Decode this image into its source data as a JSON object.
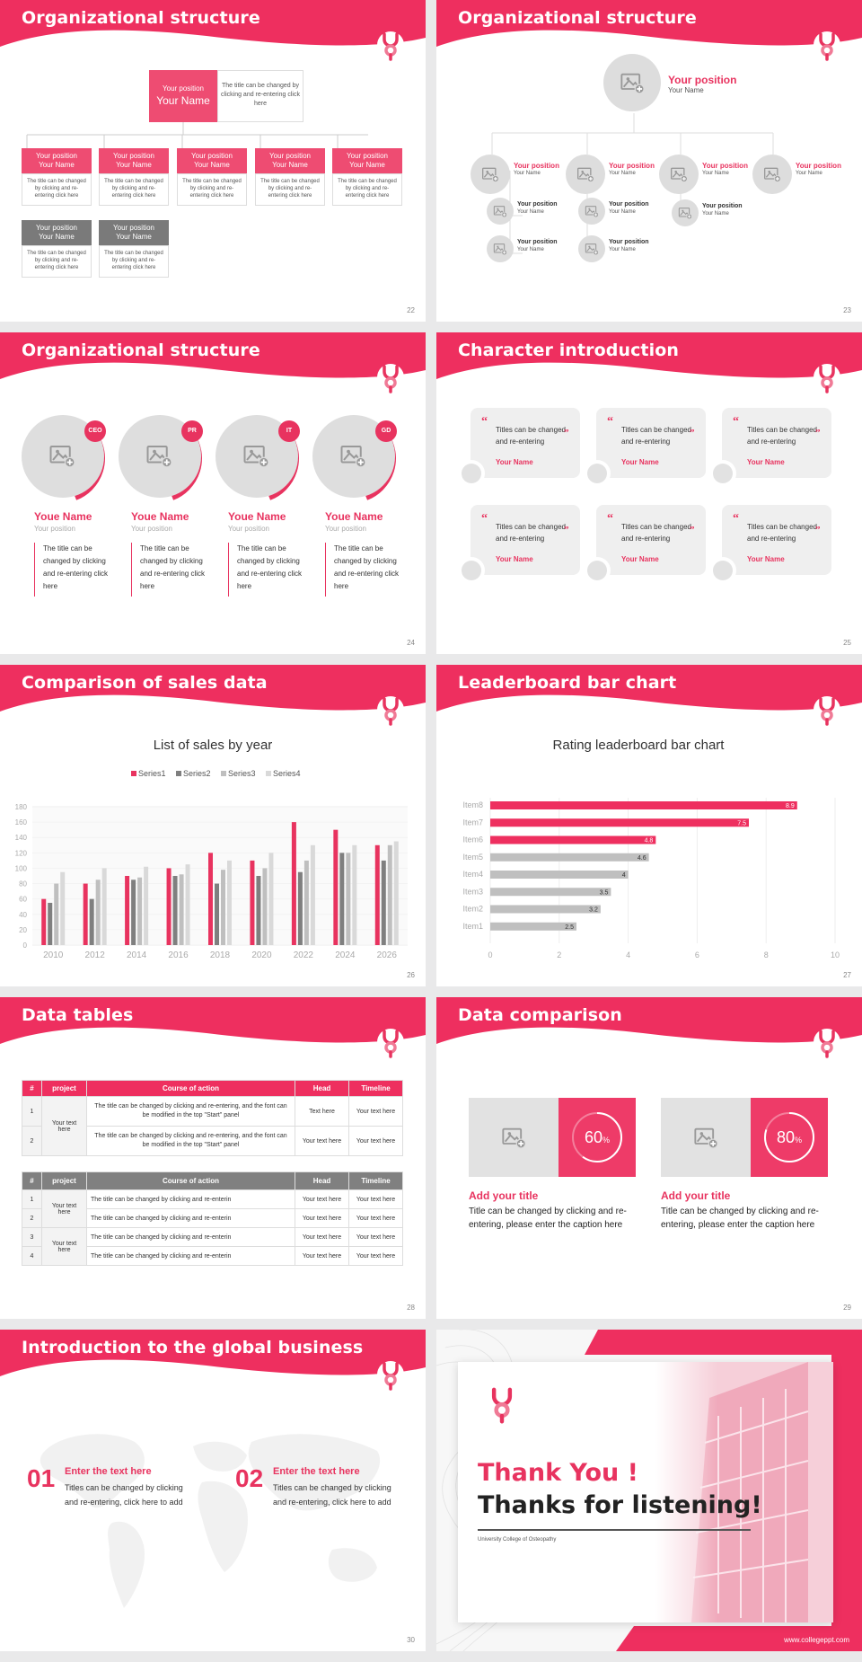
{
  "slides": [
    {
      "title": "Organizational structure",
      "num": "22",
      "top": {
        "pos": "Your position",
        "name": "Your Name",
        "desc": "The title can be changed by clicking and re-entering click here"
      },
      "box_pos": "Your position",
      "box_name": "Your Name",
      "box_desc": "The title can be changed by clicking and re-entering click here"
    },
    {
      "title": "Organizational structure",
      "num": "23",
      "pos": "Your position",
      "name": "Your Name"
    },
    {
      "title": "Organizational structure",
      "num": "24",
      "people": [
        {
          "badge": "CEO",
          "name": "Youe Name",
          "pos": "Your position",
          "desc": "The title can be changed by clicking and re-entering click here"
        },
        {
          "badge": "PR",
          "name": "Youe Name",
          "pos": "Your position",
          "desc": "The title can be changed by clicking and re-entering click here"
        },
        {
          "badge": "IT",
          "name": "Youe Name",
          "pos": "Your position",
          "desc": "The title can be changed by clicking and re-entering click here"
        },
        {
          "badge": "GD",
          "name": "Youe Name",
          "pos": "Your position",
          "desc": "The title can be changed by clicking and re-entering click here"
        }
      ]
    },
    {
      "title": "Character introduction",
      "num": "25",
      "quote_text": "Titles can be changed and re-entering",
      "quote_name": "Your Name",
      "open": "“",
      "close": "”"
    },
    {
      "title": "Comparison of sales data",
      "num": "26"
    },
    {
      "title": "Leaderboard bar chart",
      "num": "27"
    },
    {
      "title": "Data tables",
      "num": "28",
      "t1": {
        "headers": [
          "#",
          "project",
          "Course of action",
          "Head",
          "Timeline"
        ],
        "rows": [
          {
            "n": "1",
            "action": "The title can be changed by clicking and re-entering, and the font can be modified in the top \"Start\" panel",
            "head": "Text here",
            "time": "Your text here"
          },
          {
            "n": "2",
            "action": "The title can be changed by clicking and re-entering, and the font can be modified in the top \"Start\" panel",
            "head": "Your text here",
            "time": "Your text here"
          }
        ],
        "project": "Your text here"
      },
      "t2": {
        "headers": [
          "#",
          "project",
          "Course of action",
          "Head",
          "Timeline"
        ],
        "rows": [
          {
            "n": "1",
            "action": "The title can be changed by clicking and re-enterin",
            "head": "Your text here",
            "time": "Your text here"
          },
          {
            "n": "2",
            "action": "The title can be changed by clicking and re-enterin",
            "head": "Your text here",
            "time": "Your text here"
          },
          {
            "n": "3",
            "action": "The title can be changed by clicking and re-enterin",
            "head": "Your text here",
            "time": "Your text here"
          },
          {
            "n": "4",
            "action": "The title can be changed by clicking and re-enterin",
            "head": "Your text here",
            "time": "Your text here"
          }
        ],
        "project_a": "Your text here",
        "project_b": "Your text here"
      }
    },
    {
      "title": "Data comparison",
      "num": "29",
      "cards": [
        {
          "pct": "60",
          "unit": "%",
          "value": 0.6,
          "title": "Add your title",
          "desc": "Title can be changed by clicking and re-entering, please enter the caption here"
        },
        {
          "pct": "80",
          "unit": "%",
          "value": 0.8,
          "title": "Add your title",
          "desc": "Title can be changed by clicking and re-entering, please enter the caption here"
        }
      ]
    },
    {
      "title": "Introduction to the global business",
      "num": "30",
      "items": [
        {
          "n": "01",
          "title": "Enter the text here",
          "desc": "Titles can be changed by clicking and re-entering, click here to add"
        },
        {
          "n": "02",
          "title": "Enter the text here",
          "desc": "Titles can be changed by clicking and re-entering, click here to add"
        }
      ]
    },
    {
      "thanks": "Thank You !",
      "listening": "Thanks for listening!",
      "college": "University College of Osteopathy",
      "url": "www.collegeppt.com"
    }
  ],
  "chart_data": [
    {
      "type": "bar",
      "title": "List of sales by year",
      "categories": [
        "2010",
        "2012",
        "2014",
        "2016",
        "2018",
        "2020",
        "2022",
        "2024",
        "2026"
      ],
      "series": [
        {
          "name": "Series1",
          "color": "#e8335f",
          "values": [
            60,
            80,
            90,
            100,
            120,
            110,
            160,
            150,
            130
          ]
        },
        {
          "name": "Series2",
          "color": "#7f7f7f",
          "values": [
            55,
            60,
            85,
            90,
            80,
            90,
            95,
            120,
            110
          ]
        },
        {
          "name": "Series3",
          "color": "#bfbfbf",
          "values": [
            80,
            85,
            88,
            92,
            98,
            100,
            110,
            120,
            130
          ]
        },
        {
          "name": "Series4",
          "color": "#d9d9d9",
          "values": [
            95,
            100,
            102,
            105,
            110,
            120,
            130,
            130,
            135
          ]
        }
      ],
      "ylim": [
        0,
        180
      ],
      "yticks": [
        "0",
        "20",
        "40",
        "60",
        "80",
        "100",
        "120",
        "140",
        "160",
        "180"
      ],
      "legend": "top"
    },
    {
      "type": "bar",
      "orientation": "horizontal",
      "title": "Rating leaderboard bar chart",
      "categories": [
        "Item8",
        "Item7",
        "Item6",
        "Item5",
        "Item4",
        "Item3",
        "Item2",
        "Item1"
      ],
      "values": [
        8.9,
        7.5,
        4.8,
        4.6,
        4,
        3.5,
        3.2,
        2.5
      ],
      "labels": [
        "8.9",
        "7.5",
        "4.8",
        "4.6",
        "4",
        "3.5",
        "3.2",
        "2.5"
      ],
      "xlim": [
        0,
        10
      ],
      "xticks": [
        "0",
        "2",
        "4",
        "6",
        "8",
        "10"
      ]
    }
  ]
}
